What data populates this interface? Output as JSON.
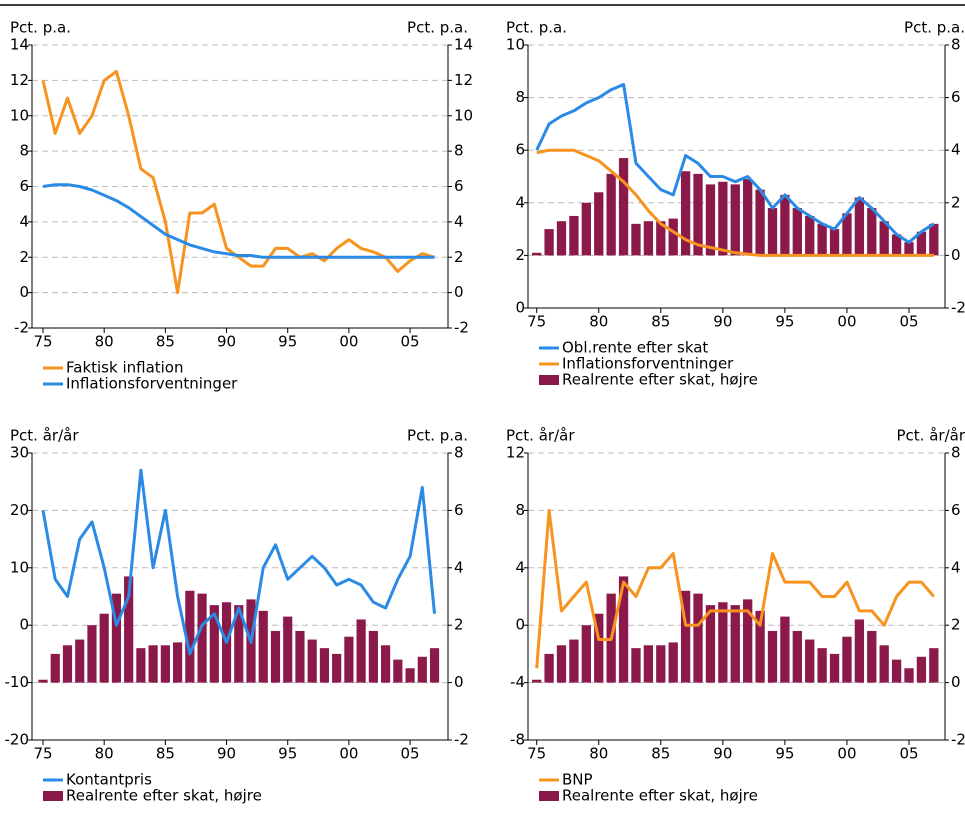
{
  "chart_data": [
    {
      "type": "line",
      "y_label": "Pct. p.a.",
      "y2_label": "Pct. p.a.",
      "x": [
        1975,
        1976,
        1977,
        1978,
        1979,
        1980,
        1981,
        1982,
        1983,
        1984,
        1985,
        1986,
        1987,
        1988,
        1989,
        1990,
        1991,
        1992,
        1993,
        1994,
        1995,
        1996,
        1997,
        1998,
        1999,
        2000,
        2001,
        2002,
        2003,
        2004,
        2005,
        2006,
        2007
      ],
      "xlim": [
        1974.1,
        2008.1
      ],
      "xticks": [
        {
          "value": 1975,
          "label": "75"
        },
        {
          "value": 1980,
          "label": "80"
        },
        {
          "value": 1985,
          "label": "85"
        },
        {
          "value": 1990,
          "label": "90"
        },
        {
          "value": 1995,
          "label": "95"
        },
        {
          "value": 2000,
          "label": "00"
        },
        {
          "value": 2005,
          "label": "05"
        }
      ],
      "ylim": [
        -2,
        14
      ],
      "yticks": [
        -2,
        0,
        2,
        4,
        6,
        8,
        10,
        12,
        14
      ],
      "y2lim": [
        -2,
        14
      ],
      "y2ticks": [
        -2,
        0,
        2,
        4,
        6,
        8,
        10,
        12,
        14
      ],
      "grid": true,
      "series": [
        {
          "name": "Faktisk inflation",
          "color": "#f7931e",
          "values": [
            12,
            9,
            11,
            9,
            10,
            12,
            12.5,
            10,
            7,
            6.5,
            4,
            0,
            4.5,
            4.5,
            5,
            2.5,
            2,
            1.5,
            1.5,
            2.5,
            2.5,
            2,
            2.2,
            1.8,
            2.5,
            3,
            2.5,
            2.3,
            2,
            1.2,
            1.8,
            2.2,
            2
          ]
        },
        {
          "name": "Inflationsforventninger",
          "color": "#2a8ae6",
          "values": [
            6,
            6.1,
            6.1,
            6,
            5.8,
            5.5,
            5.2,
            4.8,
            4.3,
            3.8,
            3.3,
            3,
            2.7,
            2.5,
            2.3,
            2.2,
            2.1,
            2.1,
            2,
            2,
            2,
            2,
            2,
            2,
            2,
            2,
            2,
            2,
            2,
            2,
            2,
            2,
            2
          ]
        }
      ]
    },
    {
      "type": "line",
      "y_label": "Pct. p.a.",
      "y2_label": "Pct. p.a.",
      "x": [
        1975,
        1976,
        1977,
        1978,
        1979,
        1980,
        1981,
        1982,
        1983,
        1984,
        1985,
        1986,
        1987,
        1988,
        1989,
        1990,
        1991,
        1992,
        1993,
        1994,
        1995,
        1996,
        1997,
        1998,
        1999,
        2000,
        2001,
        2002,
        2003,
        2004,
        2005,
        2006,
        2007
      ],
      "xlim": [
        1974.3,
        2007.9
      ],
      "xticks": [
        {
          "value": 1975,
          "label": "75"
        },
        {
          "value": 1980,
          "label": "80"
        },
        {
          "value": 1985,
          "label": "85"
        },
        {
          "value": 1990,
          "label": "90"
        },
        {
          "value": 1995,
          "label": "95"
        },
        {
          "value": 2000,
          "label": "00"
        },
        {
          "value": 2005,
          "label": "05"
        }
      ],
      "ylim": [
        0,
        10
      ],
      "yticks": [
        0,
        2,
        4,
        6,
        8,
        10
      ],
      "y2lim": [
        -2,
        8
      ],
      "y2ticks": [
        -2,
        0,
        2,
        4,
        6,
        8
      ],
      "grid": true,
      "series": [
        {
          "name": "Obl.rente efter skat",
          "color": "#2a8ae6",
          "values": [
            6,
            7,
            7.3,
            7.5,
            7.8,
            8,
            8.3,
            8.5,
            5.5,
            5,
            4.5,
            4.3,
            5.8,
            5.5,
            5,
            5,
            4.8,
            5,
            4.5,
            3.8,
            4.3,
            3.8,
            3.5,
            3.2,
            3,
            3.6,
            4.2,
            3.8,
            3.3,
            2.8,
            2.5,
            2.9,
            3.2
          ]
        },
        {
          "name": "Inflationsforventninger",
          "color": "#f7931e",
          "values": [
            5.9,
            6,
            6,
            6,
            5.8,
            5.6,
            5.2,
            4.8,
            4.3,
            3.7,
            3.2,
            2.9,
            2.6,
            2.4,
            2.3,
            2.2,
            2.1,
            2.05,
            2,
            2,
            2,
            2,
            2,
            2,
            2,
            2,
            2,
            2,
            2,
            2,
            2,
            2,
            2
          ]
        },
        {
          "name": "Realrente efter skat, højre",
          "color": "#8b1a4b",
          "type": "bar",
          "axis": "y2",
          "values": [
            0.1,
            1,
            1.3,
            1.5,
            2,
            2.4,
            3.1,
            3.7,
            1.2,
            1.3,
            1.3,
            1.4,
            3.2,
            3.1,
            2.7,
            2.8,
            2.7,
            2.9,
            2.5,
            1.8,
            2.3,
            1.8,
            1.5,
            1.2,
            1,
            1.6,
            2.2,
            1.8,
            1.3,
            0.8,
            0.5,
            0.9,
            1.2
          ]
        }
      ]
    },
    {
      "type": "line",
      "y_label": "Pct. år/år",
      "y2_label": "Pct. p.a.",
      "x": [
        1975,
        1976,
        1977,
        1978,
        1979,
        1980,
        1981,
        1982,
        1983,
        1984,
        1985,
        1986,
        1987,
        1988,
        1989,
        1990,
        1991,
        1992,
        1993,
        1994,
        1995,
        1996,
        1997,
        1998,
        1999,
        2000,
        2001,
        2002,
        2003,
        2004,
        2005,
        2006,
        2007
      ],
      "xlim": [
        1974.1,
        2008.1
      ],
      "xticks": [
        {
          "value": 1975,
          "label": "75"
        },
        {
          "value": 1980,
          "label": "80"
        },
        {
          "value": 1985,
          "label": "85"
        },
        {
          "value": 1990,
          "label": "90"
        },
        {
          "value": 1995,
          "label": "95"
        },
        {
          "value": 2000,
          "label": "00"
        },
        {
          "value": 2005,
          "label": "05"
        }
      ],
      "ylim": [
        -20,
        30
      ],
      "yticks": [
        -20,
        -10,
        0,
        10,
        20,
        30
      ],
      "y2lim": [
        -2,
        8
      ],
      "y2ticks": [
        -2,
        0,
        2,
        4,
        6,
        8
      ],
      "grid": true,
      "series": [
        {
          "name": "Kontantpris",
          "color": "#2a8ae6",
          "values": [
            20,
            8,
            5,
            15,
            18,
            10,
            0,
            5,
            27,
            10,
            20,
            5,
            -5,
            0,
            2,
            -3,
            3,
            -3,
            10,
            14,
            8,
            10,
            12,
            10,
            7,
            8,
            7,
            4,
            3,
            8,
            12,
            24,
            2
          ]
        },
        {
          "name": "Realrente efter skat, højre",
          "color": "#8b1a4b",
          "type": "bar",
          "axis": "y2",
          "values": [
            0.1,
            1,
            1.3,
            1.5,
            2,
            2.4,
            3.1,
            3.7,
            1.2,
            1.3,
            1.3,
            1.4,
            3.2,
            3.1,
            2.7,
            2.8,
            2.7,
            2.9,
            2.5,
            1.8,
            2.3,
            1.8,
            1.5,
            1.2,
            1,
            1.6,
            2.2,
            1.8,
            1.3,
            0.8,
            0.5,
            0.9,
            1.2
          ]
        }
      ]
    },
    {
      "type": "line",
      "y_label": "Pct. år/år",
      "y2_label": "Pct. år/år",
      "x": [
        1975,
        1976,
        1977,
        1978,
        1979,
        1980,
        1981,
        1982,
        1983,
        1984,
        1985,
        1986,
        1987,
        1988,
        1989,
        1990,
        1991,
        1992,
        1993,
        1994,
        1995,
        1996,
        1997,
        1998,
        1999,
        2000,
        2001,
        2002,
        2003,
        2004,
        2005,
        2006,
        2007
      ],
      "xlim": [
        1974.3,
        2007.9
      ],
      "xticks": [
        {
          "value": 1975,
          "label": "75"
        },
        {
          "value": 1980,
          "label": "80"
        },
        {
          "value": 1985,
          "label": "85"
        },
        {
          "value": 1990,
          "label": "90"
        },
        {
          "value": 1995,
          "label": "95"
        },
        {
          "value": 2000,
          "label": "00"
        },
        {
          "value": 2005,
          "label": "05"
        }
      ],
      "ylim": [
        -8,
        12
      ],
      "yticks": [
        -8,
        -4,
        0,
        4,
        8,
        12
      ],
      "y2lim": [
        -2,
        8
      ],
      "y2ticks": [
        -2,
        0,
        2,
        4,
        6,
        8
      ],
      "grid": true,
      "series": [
        {
          "name": "BNP",
          "color": "#f7931e",
          "values": [
            -3,
            8,
            1,
            2,
            3,
            -1,
            -1,
            3,
            2,
            4,
            4,
            5,
            0,
            0,
            1,
            1,
            1,
            1,
            0,
            5,
            3,
            3,
            3,
            2,
            2,
            3,
            1,
            1,
            0,
            2,
            3,
            3,
            2
          ]
        },
        {
          "name": "Realrente efter skat, højre",
          "color": "#8b1a4b",
          "type": "bar",
          "axis": "y2",
          "values": [
            0.1,
            1,
            1.3,
            1.5,
            2,
            2.4,
            3.1,
            3.7,
            1.2,
            1.3,
            1.3,
            1.4,
            3.2,
            3.1,
            2.7,
            2.8,
            2.7,
            2.9,
            2.5,
            1.8,
            2.3,
            1.8,
            1.5,
            1.2,
            1,
            1.6,
            2.2,
            1.8,
            1.3,
            0.8,
            0.5,
            0.9,
            1.2
          ]
        }
      ]
    }
  ]
}
